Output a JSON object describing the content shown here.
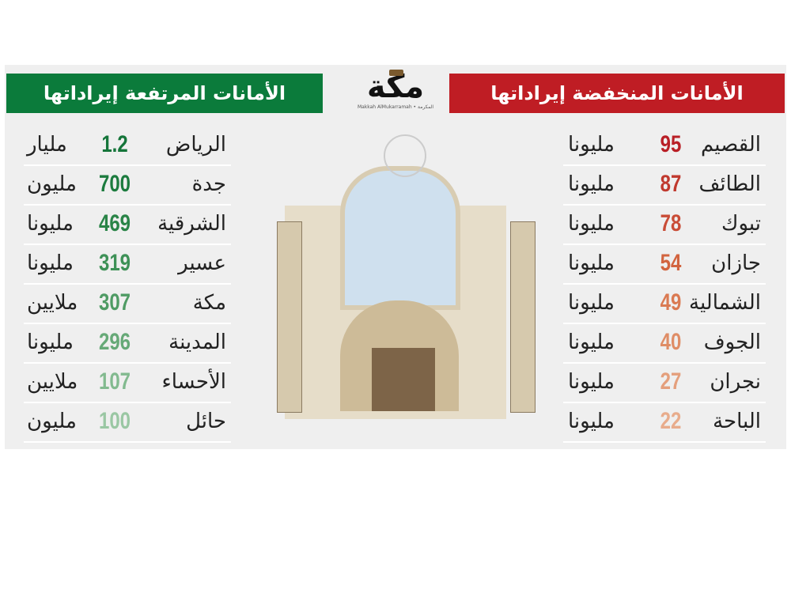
{
  "header_high": "الأمانات المرتفعة إيراداتها",
  "header_low": "الأمانات المنخفضة إيراداتها",
  "logo": {
    "main": "مكة",
    "sub": "Makkah AlMukarramah • المكرمة"
  },
  "colors": {
    "green": "#0b7b3b",
    "red": "#bf1d24"
  },
  "high": [
    {
      "city": "الرياض",
      "value": "1.2",
      "unit": "مليار",
      "color": "#15753a"
    },
    {
      "city": "جدة",
      "value": "700",
      "unit": "مليون",
      "color": "#1c7b3e"
    },
    {
      "city": "الشرقية",
      "value": "469",
      "unit": "مليونا",
      "color": "#2a8447"
    },
    {
      "city": "عسير",
      "value": "319",
      "unit": "مليونا",
      "color": "#3e9157"
    },
    {
      "city": "مكة",
      "value": "307",
      "unit": "ملايين",
      "color": "#4f9b64"
    },
    {
      "city": "المدينة",
      "value": "296",
      "unit": "مليونا",
      "color": "#66a977"
    },
    {
      "city": "الأحساء",
      "value": "107",
      "unit": "ملايين",
      "color": "#82ba8f"
    },
    {
      "city": "حائل",
      "value": "100",
      "unit": "مليون",
      "color": "#9ac7a3"
    }
  ],
  "low": [
    {
      "city": "القصيم",
      "value": "95",
      "unit": "مليونا",
      "color": "#b91f26"
    },
    {
      "city": "الطائف",
      "value": "87",
      "unit": "مليونا",
      "color": "#c0392e"
    },
    {
      "city": "تبوك",
      "value": "78",
      "unit": "مليونا",
      "color": "#c94c36"
    },
    {
      "city": "جازان",
      "value": "54",
      "unit": "مليونا",
      "color": "#d2643f"
    },
    {
      "city": "الشمالية",
      "value": "49",
      "unit": "مليونا",
      "color": "#da7a52"
    },
    {
      "city": "الجوف",
      "value": "40",
      "unit": "مليونا",
      "color": "#df8d66"
    },
    {
      "city": "نجران",
      "value": "27",
      "unit": "مليونا",
      "color": "#e49f7c"
    },
    {
      "city": "الباحة",
      "value": "22",
      "unit": "مليونا",
      "color": "#e8ac8c"
    }
  ]
}
